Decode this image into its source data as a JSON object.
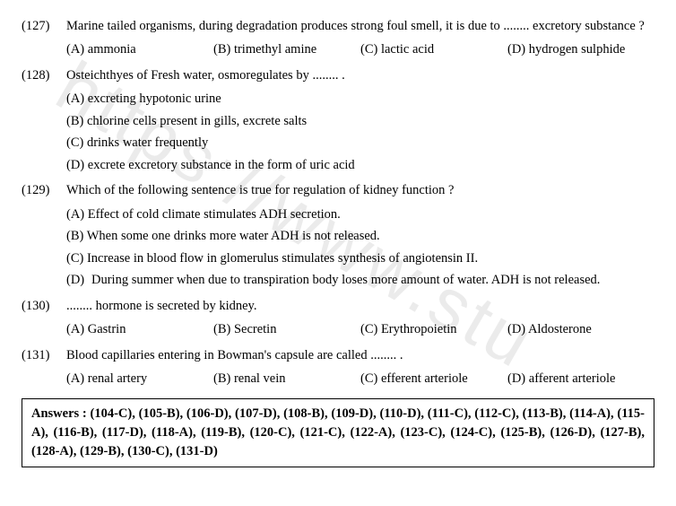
{
  "questions": [
    {
      "num": "(127)",
      "text": "Marine tailed organisms, during degradation produces strong foul smell, it is due to ........ excretory substance ?",
      "layout": "row",
      "options": [
        {
          "label": "(A)",
          "text": "ammonia"
        },
        {
          "label": "(B)",
          "text": "trimethyl amine"
        },
        {
          "label": "(C)",
          "text": "lactic acid"
        },
        {
          "label": "(D)",
          "text": "hydrogen sulphide"
        }
      ]
    },
    {
      "num": "(128)",
      "text": "Osteichthyes of Fresh water, osmoregulates by ........ .",
      "layout": "stack",
      "options": [
        {
          "label": "(A)",
          "text": "excreting hypotonic urine"
        },
        {
          "label": "(B)",
          "text": "chlorine cells present in gills, excrete salts"
        },
        {
          "label": "(C)",
          "text": "drinks water frequently"
        },
        {
          "label": "(D)",
          "text": "excrete excretory substance in the form of uric acid"
        }
      ]
    },
    {
      "num": "(129)",
      "text": "Which of the following sentence is true for regulation of kidney function ?",
      "layout": "stack",
      "options": [
        {
          "label": "(A)",
          "text": "Effect of cold climate stimulates ADH secretion."
        },
        {
          "label": "(B)",
          "text": "When some one drinks more water ADH is not released."
        },
        {
          "label": "(C)",
          "text": "Increase in blood flow in glomerulus stimulates synthesis of angiotensin II."
        },
        {
          "label": "(D)",
          "text": "During summer when due to transpiration body loses more amount of water. ADH is not released."
        }
      ]
    },
    {
      "num": "(130)",
      "text": "........ hormone is secreted by kidney.",
      "layout": "row",
      "options": [
        {
          "label": "(A)",
          "text": "Gastrin"
        },
        {
          "label": "(B)",
          "text": "Secretin"
        },
        {
          "label": "(C)",
          "text": "Erythropoietin"
        },
        {
          "label": "(D)",
          "text": "Aldosterone"
        }
      ]
    },
    {
      "num": "(131)",
      "text": "Blood capillaries entering in Bowman's capsule are called ........ .",
      "layout": "row",
      "options": [
        {
          "label": "(A)",
          "text": "renal artery"
        },
        {
          "label": "(B)",
          "text": "renal vein"
        },
        {
          "label": "(C)",
          "text": "efferent arteriole"
        },
        {
          "label": "(D)",
          "text": "afferent arteriole"
        }
      ]
    }
  ],
  "answers": "Answers : (104-C), (105-B), (106-D), (107-D), (108-B), (109-D), (110-D), (111-C), (112-C), (113-B), (114-A), (115-A), (116-B), (117-D), (118-A), (119-B), (120-C), (121-C), (122-A), (123-C), (124-C), (125-B), (126-D), (127-B), (128-A), (129-B), (130-C), (131-D)",
  "watermark": "https://www.stu"
}
